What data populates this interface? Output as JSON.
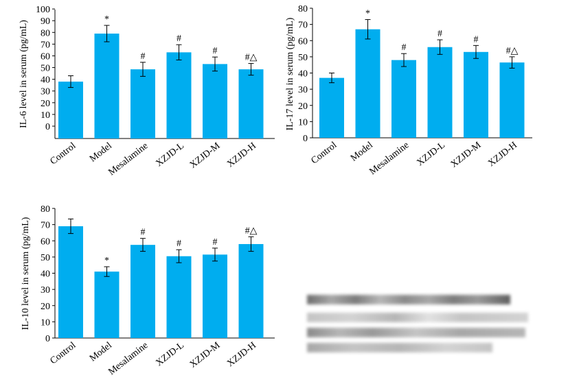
{
  "colors": {
    "bar": "#00ADEF",
    "axis": "#000000"
  },
  "chart_data": [
    {
      "type": "bar",
      "categories": [
        "Control",
        "Model",
        "Mesalamine",
        "XZJD-L",
        "XZJD-M",
        "XZJD-H"
      ],
      "values": [
        38,
        79,
        48.5,
        63,
        53,
        48.5
      ],
      "errors": [
        5,
        7,
        6,
        6.5,
        6,
        5
      ],
      "annotations": [
        "",
        "*",
        "#",
        "#",
        "#",
        "#△"
      ],
      "ylabel": "IL-6 level in serum (pg/mL)",
      "ylim": [
        -10,
        100
      ],
      "yticks": [
        0,
        10,
        20,
        30,
        40,
        50,
        60,
        70,
        80,
        90,
        100
      ],
      "grid": false
    },
    {
      "type": "bar",
      "categories": [
        "Control",
        "Model",
        "Mesalamine",
        "XZJD-L",
        "XZJD-M",
        "XZJD-H"
      ],
      "values": [
        37,
        67,
        48,
        56,
        53,
        46.5
      ],
      "errors": [
        3,
        6,
        4,
        4.5,
        4,
        3.5
      ],
      "annotations": [
        "",
        "*",
        "#",
        "#",
        "#",
        "#△"
      ],
      "ylabel": "IL-17 level in serum (pg/mL)",
      "ylim": [
        0,
        80
      ],
      "yticks": [
        0,
        10,
        20,
        30,
        40,
        50,
        60,
        70,
        80
      ],
      "grid": false
    },
    {
      "type": "bar",
      "categories": [
        "Control",
        "Model",
        "Mesalamine",
        "XZJD-L",
        "XZJD-M",
        "XZJD-H"
      ],
      "values": [
        69,
        41,
        57.5,
        50.5,
        51.5,
        58
      ],
      "errors": [
        4.5,
        3,
        4,
        4,
        4,
        4.5
      ],
      "annotations": [
        "",
        "*",
        "#",
        "#",
        "#",
        "#△"
      ],
      "ylabel": "IL-10 level in serum (pg/mL)",
      "ylim": [
        0,
        80
      ],
      "yticks": [
        0,
        10,
        20,
        30,
        40,
        50,
        60,
        70,
        80
      ],
      "grid": false
    }
  ],
  "caption_blurred": true
}
